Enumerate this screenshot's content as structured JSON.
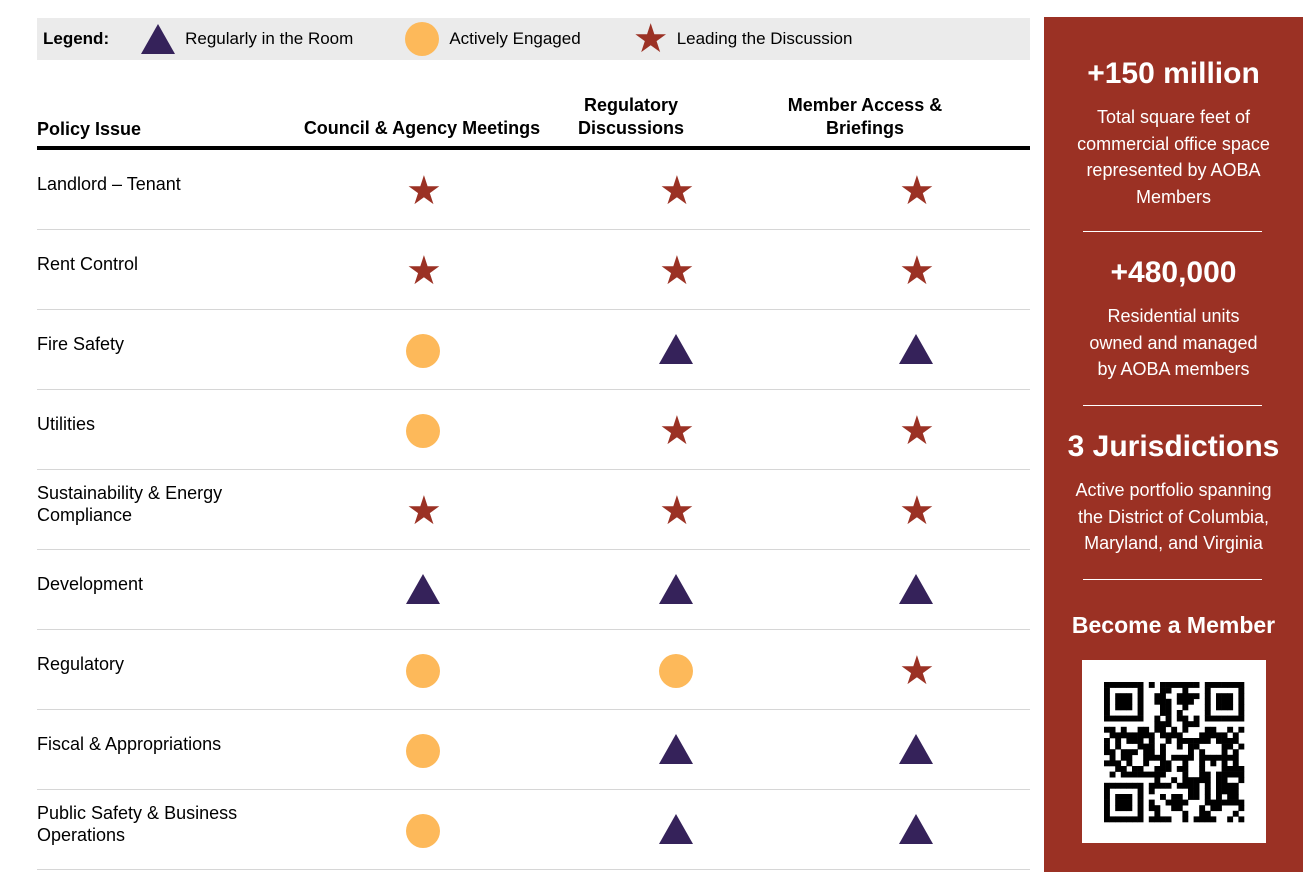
{
  "legend": {
    "label": "Legend:",
    "items": [
      {
        "icon": "triangle-icon",
        "label": "Regularly in the Room"
      },
      {
        "icon": "circle-icon",
        "label": "Actively Engaged"
      },
      {
        "icon": "star-icon",
        "label": "Leading the Discussion"
      }
    ]
  },
  "colors": {
    "triangle": "#35225a",
    "circle": "#fdb95a",
    "star": "#9b3124",
    "sidebar": "#9b3124"
  },
  "table": {
    "headers": [
      "Policy Issue",
      "Council & Agency Meetings",
      "Regulatory Discussions",
      "Member Access & Briefings"
    ],
    "rows": [
      {
        "issue": "Landlord – Tenant",
        "v": [
          "star",
          "star",
          "star"
        ]
      },
      {
        "issue": "Rent Control",
        "v": [
          "star",
          "star",
          "star"
        ]
      },
      {
        "issue": "Fire Safety",
        "v": [
          "circle",
          "triangle",
          "triangle"
        ]
      },
      {
        "issue": "Utilities",
        "v": [
          "circle",
          "star",
          "star"
        ]
      },
      {
        "issue": "Sustainability & Energy Compliance",
        "v": [
          "star",
          "star",
          "star"
        ]
      },
      {
        "issue": "Development",
        "v": [
          "triangle",
          "triangle",
          "triangle"
        ]
      },
      {
        "issue": "Regulatory",
        "v": [
          "circle",
          "circle",
          "star"
        ]
      },
      {
        "issue": "Fiscal & Appropriations",
        "v": [
          "circle",
          "triangle",
          "triangle"
        ]
      },
      {
        "issue": "Public Safety & Business Operations",
        "v": [
          "circle",
          "triangle",
          "triangle"
        ]
      }
    ]
  },
  "sidebar": {
    "stat1": {
      "value": "+150 million",
      "desc": "Total square feet of commercial office space represented by AOBA Members"
    },
    "stat2": {
      "value": "+480,000",
      "desc": "Residential units owned and managed by AOBA members"
    },
    "stat3": {
      "value": "3 Jurisdictions",
      "desc": "Active portfolio spanning the District of Columbia, Maryland, and Virginia"
    },
    "cta": "Become a Member"
  }
}
